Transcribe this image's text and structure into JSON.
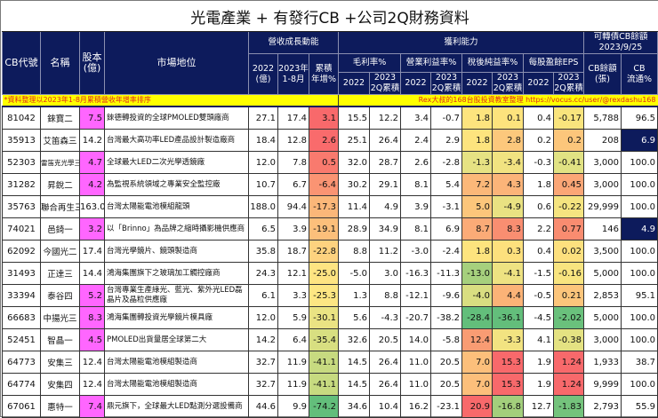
{
  "title": "光電產業 + 有發行CB +公司2Q財務資料",
  "headers": {
    "cb_code": "CB代號",
    "name": "名稱",
    "capital": "股本\n(億)",
    "capital_l1": "股本",
    "capital_l2": "(億)",
    "market_position": "市場地位",
    "revenue_group": "營收成長動能",
    "rev_2022_l1": "2022",
    "rev_2022_l2": "(億)",
    "rev_2023_l1": "2023年",
    "rev_2023_l2": "1-8月",
    "rev_growth_l1": "累積",
    "rev_growth_l2": "年增%",
    "profit_group": "獲利能力",
    "gross_margin": "毛利率%",
    "operating_margin": "營業利益率%",
    "net_margin": "稅後純益率%",
    "eps": "每股盈餘EPS",
    "y2022": "2022",
    "y2023_l1": "2023",
    "y2023_l2": "2Q累積",
    "cb_group_l1": "可轉債CB餘額",
    "cb_group_l2": "2023/9/25",
    "cb_balance_l1": "CB餘額",
    "cb_balance_l2": "(張)",
    "cb_float_l1": "CB",
    "cb_float_l2": "流通%"
  },
  "notes": {
    "left": "*資料整理以2023年1-8月累積營收年增率排序",
    "right": "Rex大叔的168台股投資教室整理 https://vocus.cc/user/@rexdashu168"
  },
  "colors": {
    "header_bg": "#0d1b5c",
    "note_bg": "#ffff00",
    "note_text": "#e0281a",
    "capital_highlight": "#ff66ff"
  },
  "rows": [
    {
      "code": "81042",
      "name": "錸寶二",
      "capital": "7.5",
      "capital_hl": true,
      "desc": "錸德轉投資的全球PMOLED雙頭廠商",
      "rev2022": "27.1",
      "rev2023": "17.4",
      "growth": "3.1",
      "gm22": "15.5",
      "gm23": "12.2",
      "om22": "3.4",
      "om23": "-0.7",
      "nm22": "1.8",
      "nm23": "0.1",
      "eps22": "0.4",
      "eps23": "-0.17",
      "cb_bal": "5,788",
      "cb_float": "96.5",
      "float_hl": false,
      "c_growth": "#f8696b",
      "c_nm22": "#fde47e",
      "c_nm23": "#fde37d",
      "c_eps23": "#f9e47d"
    },
    {
      "code": "35913",
      "name": "艾笛森三",
      "capital": "14.2",
      "capital_hl": false,
      "desc": "台灣最大高功率LED產品設計製造廠商",
      "rev2022": "18.4",
      "rev2023": "12.8",
      "growth": "2.6",
      "gm22": "25.1",
      "gm23": "26.4",
      "om22": "2.4",
      "om23": "2.9",
      "nm22": "1.8",
      "nm23": "2.8",
      "eps22": "0.2",
      "eps23": "0.2",
      "cb_bal": "208",
      "cb_float": "6.9",
      "float_hl": true,
      "c_growth": "#f96b6c",
      "c_nm22": "#fde47e",
      "c_nm23": "#fcc87c",
      "c_eps23": "#fcc67b"
    },
    {
      "code": "52303",
      "name": "雷笛克光學三",
      "small_name": true,
      "capital": "4.7",
      "capital_hl": true,
      "desc": "全球最大LED二次光學透鏡廠",
      "rev2022": "12.0",
      "rev2023": "7.8",
      "growth": "0.5",
      "gm22": "32.0",
      "gm23": "28.7",
      "om22": "2.6",
      "om23": "-2.8",
      "nm22": "-1.3",
      "nm23": "-3.4",
      "eps22": "-0.3",
      "eps23": "-0.41",
      "cb_bal": "3,000",
      "cb_float": "100.0",
      "float_hl": false,
      "c_growth": "#f97a6e",
      "c_nm22": "#e6e283",
      "c_nm23": "#f1e381",
      "c_eps23": "#e1e283"
    },
    {
      "code": "31282",
      "name": "昇銳二",
      "capital": "4.2",
      "capital_hl": true,
      "desc": "為監視系統領域之專業安全監控廠",
      "rev2022": "10.7",
      "rev2023": "6.7",
      "growth": "-6.4",
      "gm22": "30.2",
      "gm23": "29.1",
      "om22": "8.1",
      "om23": "5.4",
      "nm22": "7.2",
      "nm23": "4.3",
      "eps22": "1.8",
      "eps23": "0.45",
      "cb_bal": "3,000",
      "cb_float": "100.0",
      "float_hl": false,
      "c_growth": "#fa9473",
      "c_nm22": "#fbb879",
      "c_nm23": "#fbb479",
      "c_eps23": "#fba676"
    },
    {
      "code": "35763",
      "name": "聯合再生三",
      "capital": "163.0",
      "capital_hl": false,
      "desc": "台灣太陽能電池模組龍頭",
      "rev2022": "188.0",
      "rev2023": "94.4",
      "growth": "-17.3",
      "gm22": "11.4",
      "gm23": "4.9",
      "om22": "3.9",
      "om23": "-3.1",
      "nm22": "5.0",
      "nm23": "-4.9",
      "eps22": "0.6",
      "eps23": "-0.22",
      "cb_bal": "29,999",
      "cb_float": "100.0",
      "float_hl": false,
      "c_growth": "#fbb779",
      "c_nm22": "#fcc67b",
      "c_nm23": "#e9e282",
      "c_eps23": "#f5e480"
    },
    {
      "code": "74021",
      "name": "邑錡一",
      "capital": "3.2",
      "capital_hl": true,
      "desc": "以「Brinno」為品牌之縮時攝影機供應商",
      "rev2022": "6.5",
      "rev2023": "3.9",
      "growth": "-19.1",
      "gm22": "28.9",
      "gm23": "34.9",
      "om22": "8.1",
      "om23": "6.9",
      "nm22": "8.7",
      "nm23": "8.3",
      "eps22": "2.2",
      "eps23": "0.77",
      "cb_bal": "146",
      "cb_float": "4.9",
      "float_hl": true,
      "c_growth": "#fcbf7b",
      "c_nm22": "#fbab77",
      "c_nm23": "#f98e71",
      "c_eps23": "#f98c70"
    },
    {
      "code": "62092",
      "name": "今國光二",
      "capital": "17.4",
      "capital_hl": false,
      "desc": "台灣光學鏡片、鏡頭製造商",
      "rev2022": "35.8",
      "rev2023": "18.7",
      "growth": "-22.8",
      "gm22": "8.8",
      "gm23": "11.2",
      "om22": "-3.0",
      "om23": "-2.4",
      "nm22": "1.8",
      "nm23": "0.3",
      "eps22": "0.4",
      "eps23": "0.02",
      "cb_bal": "3,500",
      "cb_float": "100.0",
      "float_hl": false,
      "c_growth": "#fdd27f",
      "c_nm22": "#fde47e",
      "c_nm23": "#fde07d",
      "c_eps23": "#fde07e"
    },
    {
      "code": "31493",
      "name": "正達三",
      "capital": "14.4",
      "capital_hl": false,
      "desc": "鴻海集團旗下之玻璃加工觸控廠商",
      "rev2022": "24.3",
      "rev2023": "12.1",
      "growth": "-25.0",
      "gm22": "-5.0",
      "gm23": "3.0",
      "om22": "-16.3",
      "om23": "-11.3",
      "nm22": "-13.0",
      "nm23": "-4.1",
      "eps22": "-1.5",
      "eps23": "-0.16",
      "cb_bal": "5,000",
      "cb_float": "100.0",
      "float_hl": false,
      "c_growth": "#fee482",
      "c_nm22": "#a6d07d",
      "c_nm23": "#eee282",
      "c_eps23": "#f8e47f"
    },
    {
      "code": "33394",
      "name": "泰谷四",
      "capital": "5.2",
      "capital_hl": true,
      "desc": "台灣專業生產綠光、藍光、紫外光LED磊晶片及晶粒供應廠",
      "rev2022": "6.1",
      "rev2023": "3.3",
      "growth": "-25.3",
      "gm22": "1.3",
      "gm23": "8.8",
      "om22": "-12.1",
      "om23": "-9.6",
      "nm22": "-4.0",
      "nm23": "4.4",
      "eps22": "-0.5",
      "eps23": "0.21",
      "cb_bal": "2,853",
      "cb_float": "95.1",
      "float_hl": false,
      "c_growth": "#fde683",
      "c_nm22": "#d9de81",
      "c_nm23": "#fbb377",
      "c_eps23": "#fcc57b"
    },
    {
      "code": "66683",
      "name": "中揚光三",
      "capital": "8.3",
      "capital_hl": true,
      "desc": "鴻海集團轉投資光學鏡片模具廠",
      "rev2022": "12.0",
      "rev2023": "5.9",
      "growth": "-30.1",
      "gm22": "5.6",
      "gm23": "-4.3",
      "om22": "-20.7",
      "om23": "-38.2",
      "nm22": "-28.4",
      "nm23": "-36.1",
      "eps22": "-4.5",
      "eps23": "-2.02",
      "cb_bal": "5,000",
      "cb_float": "100.0",
      "float_hl": false,
      "c_growth": "#eae383",
      "c_nm22": "#63be7b",
      "c_nm23": "#63be7b",
      "c_eps23": "#6ac17c"
    },
    {
      "code": "52451",
      "name": "智晶一",
      "capital": "4.5",
      "capital_hl": true,
      "desc": "PMOLED出貨量居全球第二大",
      "rev2022": "14.2",
      "rev2023": "6.4",
      "growth": "-35.4",
      "gm22": "32.6",
      "gm23": "20.5",
      "om22": "14.0",
      "om23": "-5.8",
      "nm22": "12.4",
      "nm23": "-3.3",
      "eps22": "4.1",
      "eps23": "-0.38",
      "cb_bal": "3,000",
      "cb_float": "100.0",
      "float_hl": false,
      "c_growth": "#d8df81",
      "c_nm22": "#f99c73",
      "c_nm23": "#f2e381",
      "c_eps23": "#e4e282"
    },
    {
      "code": "64773",
      "name": "安集三",
      "capital": "12.4",
      "capital_hl": false,
      "desc": "台灣太陽能電池模組製造商",
      "rev2022": "32.7",
      "rev2023": "11.9",
      "growth": "-41.1",
      "gm22": "14.5",
      "gm23": "26.4",
      "om22": "11.0",
      "om23": "20.5",
      "nm22": "7.0",
      "nm23": "15.3",
      "eps22": "1.9",
      "eps23": "1.24",
      "cb_bal": "1,933",
      "cb_float": "38.7",
      "float_hl": false,
      "c_growth": "#c7da80",
      "c_nm22": "#fcbf7b",
      "c_nm23": "#f8696b",
      "c_eps23": "#f8696b"
    },
    {
      "code": "64774",
      "name": "安集四",
      "capital": "12.4",
      "capital_hl": false,
      "desc": "台灣太陽能電池模組製造商",
      "rev2022": "32.7",
      "rev2023": "11.9",
      "growth": "-41.1",
      "gm22": "14.5",
      "gm23": "26.4",
      "om22": "11.0",
      "om23": "20.5",
      "nm22": "7.0",
      "nm23": "15.3",
      "eps22": "1.9",
      "eps23": "1.24",
      "cb_bal": "9,999",
      "cb_float": "100.0",
      "float_hl": false,
      "c_growth": "#c7da80",
      "c_nm22": "#fcbf7b",
      "c_nm23": "#f8696b",
      "c_eps23": "#f8696b"
    },
    {
      "code": "67061",
      "name": "惠特一",
      "capital": "7.4",
      "capital_hl": true,
      "desc": "鼎元旗下，全球最大LED點測分選設備商",
      "rev2022": "44.6",
      "rev2023": "9.9",
      "growth": "-74.2",
      "gm22": "34.6",
      "gm23": "10.4",
      "om22": "16.2",
      "om23": "-23.1",
      "nm22": "20.9",
      "nm23": "-16.8",
      "eps22": "12.7",
      "eps23": "-1.83",
      "cb_bal": "2,793",
      "cb_float": "55.9",
      "float_hl": false,
      "c_growth": "#63be7b",
      "c_nm22": "#f8696b",
      "c_nm23": "#a3cf7c",
      "c_eps23": "#74c37c"
    }
  ]
}
